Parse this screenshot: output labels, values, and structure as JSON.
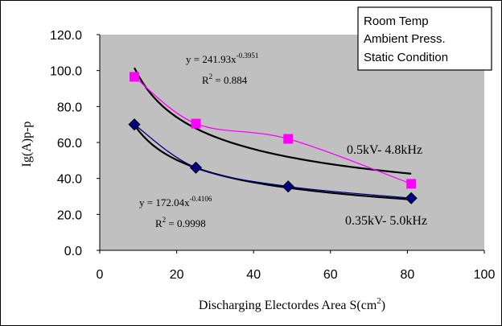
{
  "chart_data": {
    "type": "scatter",
    "title": "",
    "xlabel": "Discharging Electordes Area S(cm",
    "xlabel_sup": "2",
    "xlabel_close": ")",
    "ylabel": "Ig(A)p-p",
    "xlim": [
      0,
      100
    ],
    "ylim": [
      0,
      120
    ],
    "x_ticks": [
      0,
      20,
      40,
      60,
      80,
      100
    ],
    "x_tick_labels": [
      "0",
      "20",
      "40",
      "60",
      "80",
      "100"
    ],
    "y_ticks": [
      0,
      20,
      40,
      60,
      80,
      100,
      120
    ],
    "y_tick_labels": [
      "0.0",
      "20.0",
      "40.0",
      "60.0",
      "80.0",
      "100.0",
      "120.0"
    ],
    "grid": "none",
    "plot_background": "#c0c0c0",
    "series": [
      {
        "name": "0.5kV- 4.8kHz",
        "color": "#ff00ff",
        "marker": "square",
        "x": [
          9,
          25,
          49,
          81
        ],
        "y": [
          96.5,
          70.5,
          62,
          37
        ]
      },
      {
        "name": "0.35kV- 5.0kHz",
        "color": "#000080",
        "marker": "diamond",
        "x": [
          9,
          25,
          49,
          81
        ],
        "y": [
          70,
          46,
          35.5,
          29
        ]
      }
    ],
    "trendlines": [
      {
        "series": "0.5kV- 4.8kHz",
        "type": "power",
        "coef": 241.93,
        "exp": -0.3951,
        "color": "#000000",
        "eq_prefix": "y = 241.93x",
        "eq_exp": "-0.3951",
        "r2_prefix": "R",
        "r2_sup": "2",
        "r2_value": " = 0.884"
      },
      {
        "series": "0.35kV- 5.0kHz",
        "type": "power",
        "coef": 172.04,
        "exp": -0.4106,
        "color": "#000000",
        "eq_prefix": "y = 172.04x",
        "eq_exp": "-0.4106",
        "r2_prefix": "R",
        "r2_sup": "2",
        "r2_value": " = 0.9998"
      }
    ],
    "annotations": {
      "conditions": [
        "Room Temp",
        "Ambient Press.",
        "Static Condition"
      ],
      "series_label_1": "0.5kV- 4.8kHz",
      "series_label_2": "0.35kV- 5.0kHz"
    }
  }
}
